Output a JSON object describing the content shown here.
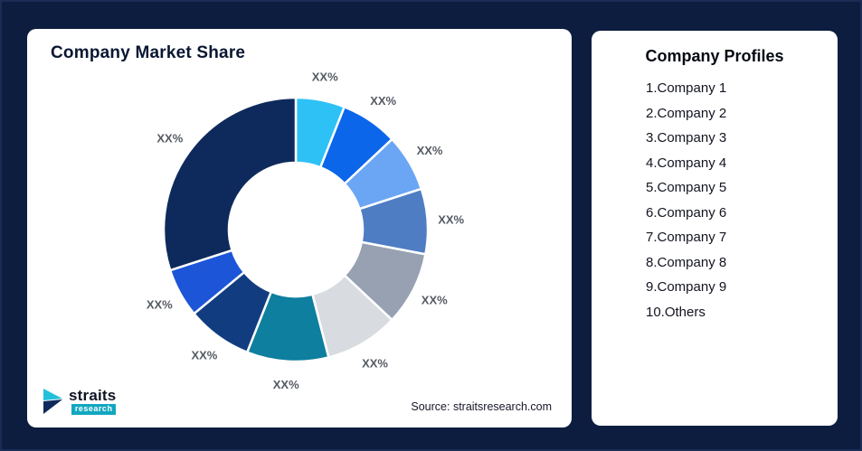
{
  "chart_card": {
    "title": "Company Market Share",
    "source": "Source: straitsresearch.com"
  },
  "logo": {
    "name": "straits",
    "sub": "research",
    "mark_color_top": "#23c0dc",
    "mark_color_bottom": "#0e2a5c"
  },
  "profiles_card": {
    "title": "Company Profiles",
    "items": [
      "1.Company 1",
      "2.Company 2",
      "3.Company 3",
      "4.Company 4",
      "5.Company 5",
      "6.Company 6",
      "7.Company 7",
      "8.Company 8",
      "9.Company 9",
      "10.Others"
    ]
  },
  "chart_data": {
    "type": "pie",
    "donut": true,
    "title": "Company Market Share",
    "categories": [
      "Company 1",
      "Company 2",
      "Company 3",
      "Company 4",
      "Company 5",
      "Company 6",
      "Company 7",
      "Company 8",
      "Company 9",
      "Others"
    ],
    "values": [
      6,
      7,
      7,
      8,
      9,
      9,
      10,
      8,
      6,
      30
    ],
    "values_note": "segment shares estimated from arc angles; on-chart labels are placeholders",
    "display_labels": [
      "XX%",
      "XX%",
      "XX%",
      "XX%",
      "XX%",
      "XX%",
      "XX%",
      "XX%",
      "XX%",
      "XX%"
    ],
    "colors": [
      "#2ec1f5",
      "#0b66e9",
      "#6ba6f5",
      "#4f7dc4",
      "#97a1b2",
      "#d8dce1",
      "#0e7f9e",
      "#113d80",
      "#1d55d8",
      "#0e2a5c"
    ],
    "start_angle_deg": 0,
    "direction": "clockwise",
    "legend_position": "none",
    "label_color": "#555a63"
  }
}
